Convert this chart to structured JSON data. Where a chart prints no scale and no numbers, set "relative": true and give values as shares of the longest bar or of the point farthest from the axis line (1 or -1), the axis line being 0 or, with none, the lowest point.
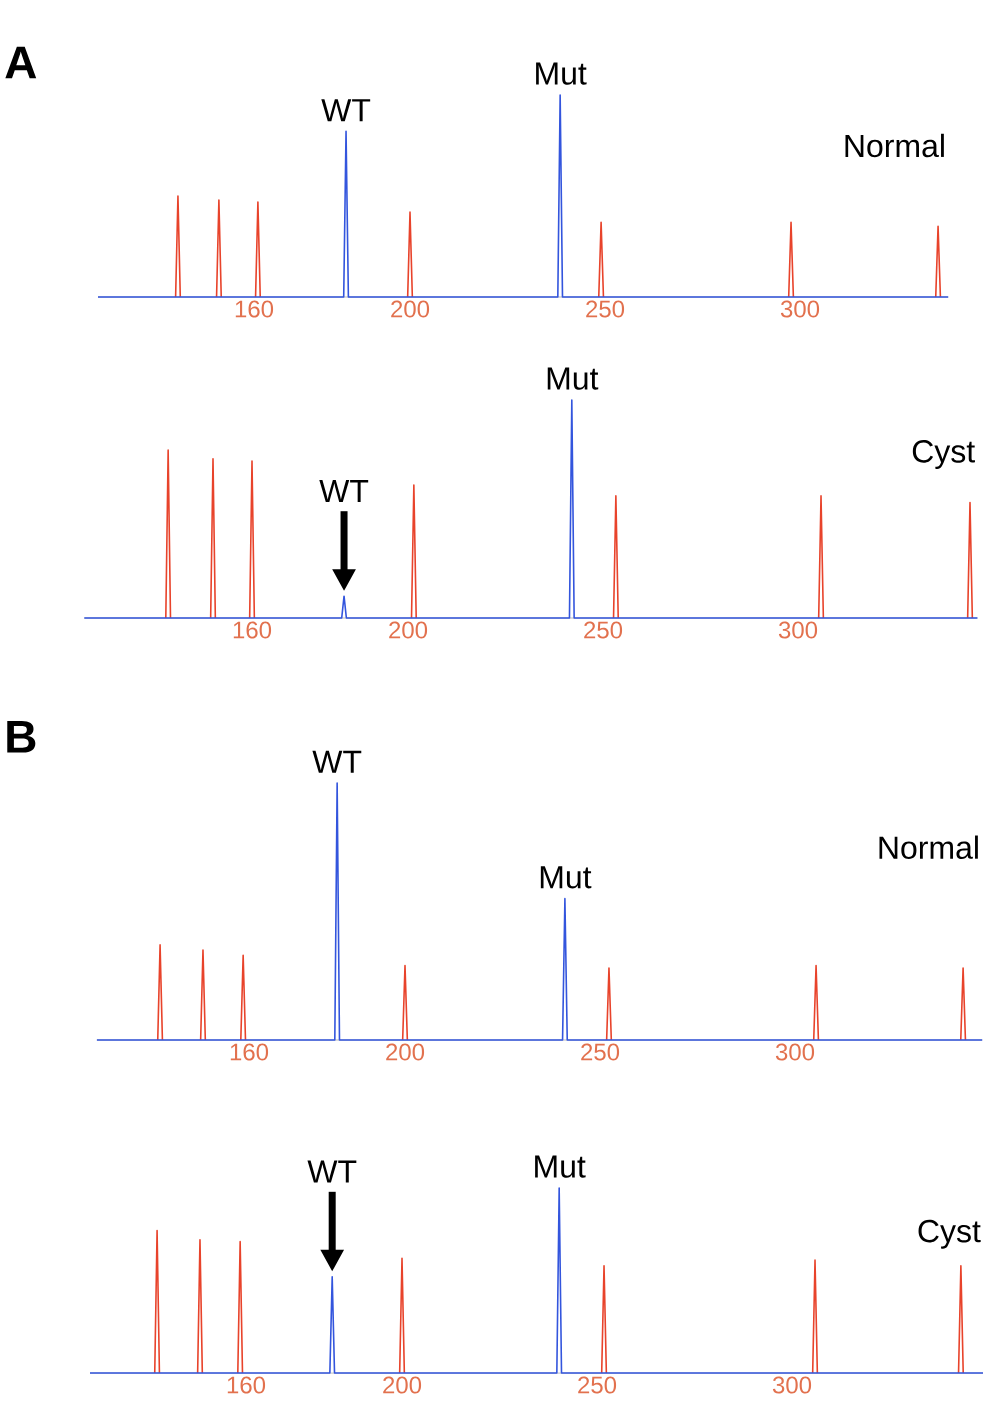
{
  "chart_data": [
    {
      "type": "line",
      "title": "A",
      "relative": true,
      "xlim": [
        120,
        338
      ],
      "xticks": [
        160,
        200,
        250,
        300
      ],
      "series": [
        {
          "color": "#3355dd",
          "x": [
            120,
            183.0,
            183.6,
            184.2,
            237.9,
            238.5,
            239.1,
            338
          ],
          "values": [
            0,
            0,
            0.82,
            0,
            0,
            1.0,
            0,
            0
          ]
        },
        {
          "color": "#e8432b",
          "x": [
            139.9,
            140.5,
            141.1,
            145,
            150.4,
            151.0,
            151.6,
            155,
            160.4,
            161.0,
            161.6,
            180,
            199.4,
            200.0,
            200.6,
            220,
            248.4,
            249.0,
            249.6,
            270,
            297.1,
            297.7,
            298.3,
            320,
            334.8,
            335.4,
            336.0
          ],
          "values": [
            0,
            0.5,
            0,
            null,
            0,
            0.48,
            0,
            null,
            0,
            0.47,
            0,
            null,
            0,
            0.42,
            0,
            null,
            0,
            0.37,
            0,
            null,
            0,
            0.37,
            0,
            null,
            0,
            0.35,
            0
          ]
        }
      ],
      "annotations": [
        {
          "text": "WT",
          "x": 183.6,
          "y": 0.82
        },
        {
          "text": "Mut",
          "x": 238.5,
          "y": 1.0
        },
        "Normal"
      ]
    },
    {
      "type": "line",
      "relative": true,
      "xlim": [
        117,
        346
      ],
      "xticks": [
        160,
        200,
        250,
        300
      ],
      "series": [
        {
          "color": "#3355dd",
          "x": [
            117,
            183.0,
            183.6,
            184.2,
            241.4,
            242.0,
            242.6,
            346
          ],
          "values": [
            0,
            0,
            0.1,
            0,
            0,
            1.0,
            0,
            0
          ]
        },
        {
          "color": "#e8432b",
          "x": [
            137.9,
            138.5,
            139.1,
            145,
            149.4,
            150.0,
            150.6,
            155,
            159.4,
            160.0,
            160.6,
            180,
            200.9,
            201.5,
            202.1,
            220,
            252.7,
            253.3,
            253.9,
            280,
            305.3,
            305.9,
            306.5,
            320,
            343.5,
            344.1,
            344.7
          ],
          "values": [
            0,
            0.77,
            0,
            null,
            0,
            0.73,
            0,
            null,
            0,
            0.72,
            0,
            null,
            0,
            0.61,
            0,
            null,
            0,
            0.56,
            0,
            null,
            0,
            0.56,
            0,
            null,
            0,
            0.53,
            0
          ]
        }
      ],
      "annotations": [
        {
          "text": "WT",
          "x": 183.6,
          "y": 0.1
        },
        {
          "text": "Mut",
          "x": 242.0,
          "y": 1.0
        },
        "Cyst"
      ]
    },
    {
      "type": "line",
      "title": "B",
      "relative": true,
      "xlim": [
        121,
        348
      ],
      "xticks": [
        160,
        200,
        250,
        300
      ],
      "series": [
        {
          "color": "#3355dd",
          "x": [
            121,
            182.0,
            182.6,
            183.2,
            240.4,
            241.0,
            241.6,
            348
          ],
          "values": [
            0,
            0,
            1.0,
            0,
            0,
            0.55,
            0,
            0
          ]
        },
        {
          "color": "#e8432b",
          "x": [
            136.6,
            137.2,
            137.8,
            143,
            147.6,
            148.2,
            148.8,
            153,
            157.9,
            158.5,
            159.1,
            180,
            199.4,
            200.0,
            200.6,
            220,
            251.7,
            252.3,
            252.9,
            280,
            304.8,
            305.4,
            306.0,
            320,
            342.5,
            343.1,
            343.7
          ],
          "values": [
            0,
            0.37,
            0,
            null,
            0,
            0.35,
            0,
            null,
            0,
            0.33,
            0,
            null,
            0,
            0.29,
            0,
            null,
            0,
            0.28,
            0,
            null,
            0,
            0.29,
            0,
            null,
            0,
            0.28,
            0
          ]
        }
      ],
      "annotations": [
        {
          "text": "WT",
          "x": 182.6,
          "y": 1.0
        },
        {
          "text": "Mut",
          "x": 241.0,
          "y": 0.55
        },
        "Normal"
      ]
    },
    {
      "type": "line",
      "relative": true,
      "xlim": [
        120,
        349
      ],
      "xticks": [
        160,
        200,
        250,
        300
      ],
      "series": [
        {
          "color": "#3355dd",
          "x": [
            120,
            181.5,
            182.1,
            182.7,
            239.7,
            240.3,
            240.9,
            349
          ],
          "values": [
            0,
            0,
            0.52,
            0,
            0,
            1.0,
            0,
            0
          ]
        },
        {
          "color": "#e8432b",
          "x": [
            136.6,
            137.2,
            137.8,
            143,
            147.6,
            148.2,
            148.8,
            153,
            157.9,
            158.5,
            159.1,
            180,
            199.4,
            200.0,
            200.6,
            220,
            251.2,
            251.8,
            252.4,
            280,
            305.3,
            305.9,
            306.5,
            320,
            342.7,
            343.3,
            343.9
          ],
          "values": [
            0,
            0.77,
            0,
            null,
            0,
            0.72,
            0,
            null,
            0,
            0.71,
            0,
            null,
            0,
            0.62,
            0,
            null,
            0,
            0.58,
            0,
            null,
            0,
            0.61,
            0,
            null,
            0,
            0.58,
            0
          ]
        }
      ],
      "annotations": [
        {
          "text": "WT",
          "x": 182.1,
          "y": 0.52
        },
        {
          "text": "Mut",
          "x": 240.3,
          "y": 1.0
        },
        "Cyst"
      ]
    }
  ]
}
